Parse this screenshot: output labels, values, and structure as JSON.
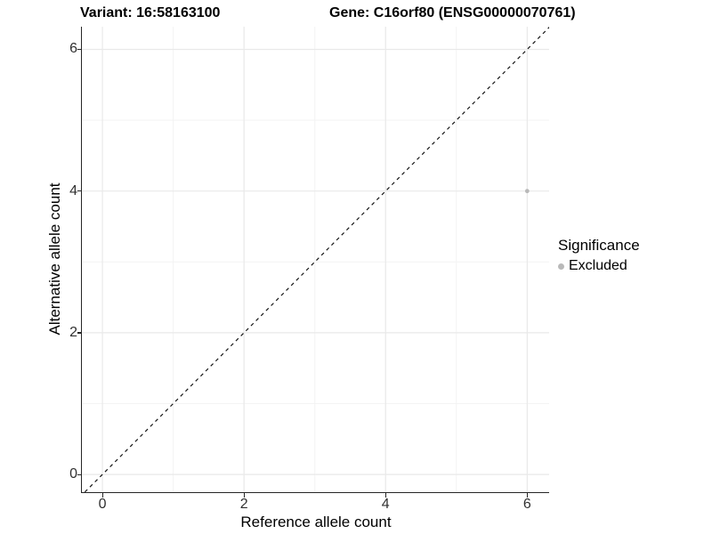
{
  "header": {
    "variant_title": "Variant: 16:58163100",
    "gene_title": "Gene: C16orf80 (ENSG00000070761)"
  },
  "chart_data": {
    "type": "scatter",
    "xlabel": "Reference allele count",
    "ylabel": "Alternative allele count",
    "xlim": [
      -0.29,
      6.31
    ],
    "ylim": [
      -0.25,
      6.32
    ],
    "x_ticks": [
      0,
      2,
      4,
      6
    ],
    "y_ticks": [
      0,
      2,
      4,
      6
    ],
    "x_minor_ticks": [
      1,
      3,
      5
    ],
    "y_minor_ticks": [
      1,
      3,
      5
    ],
    "grid": {
      "major_color": "#e9e9e9",
      "minor_color": "#f3f3f3"
    },
    "identity_line": {
      "equation": "y = x",
      "style": "dashed",
      "color": "#141414"
    },
    "series": [
      {
        "name": "Excluded",
        "color": "#b9b9b9",
        "points": [
          [
            6,
            4
          ]
        ]
      }
    ],
    "legend": {
      "title": "Significance",
      "position": "right",
      "entries": [
        {
          "label": "Excluded",
          "color": "#b9b9b9",
          "marker": "circle"
        }
      ]
    }
  }
}
